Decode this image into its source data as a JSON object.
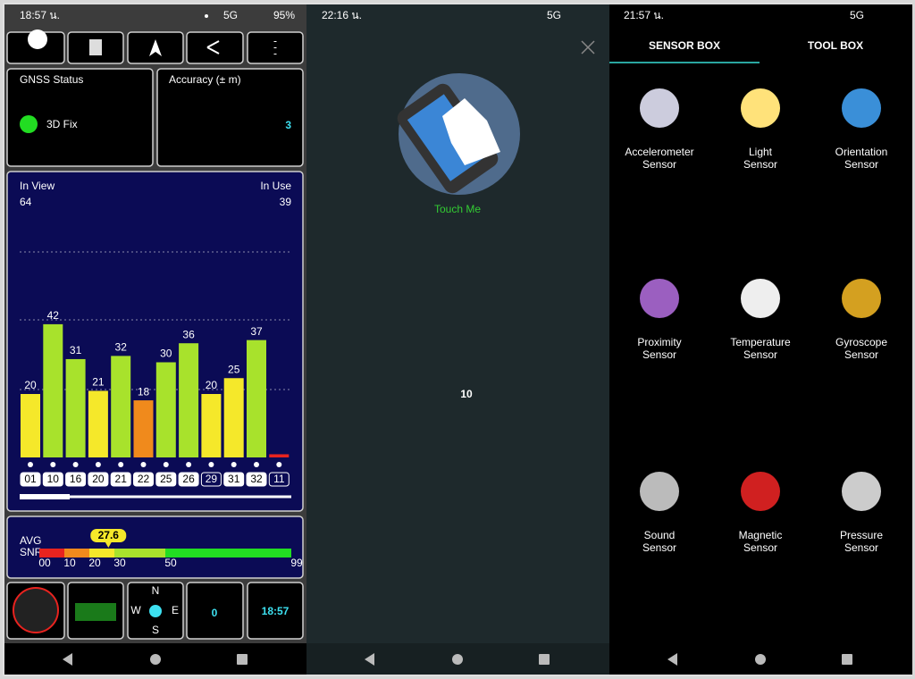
{
  "gnss": {
    "status_bar": {
      "time": "18:57 น.",
      "network": "5G",
      "battery": "95%"
    },
    "gnss_status": {
      "label": "GNSS Status",
      "value": "3D Fix"
    },
    "accuracy": {
      "label": "Accuracy (± m)",
      "value": 3
    },
    "sky": {
      "in_view_label": "In View",
      "in_view": 64,
      "in_use_label": "In Use",
      "in_use": 39,
      "satellites": {
        "ids": [
          "01",
          "10",
          "16",
          "20",
          "21",
          "22",
          "25",
          "26",
          "29",
          "31",
          "32",
          "11"
        ],
        "snr": [
          20,
          42,
          31,
          21,
          32,
          18,
          30,
          36,
          20,
          25,
          37,
          1
        ],
        "value_labels": [
          "20",
          "42",
          "31",
          "21",
          "32",
          "18",
          "30",
          "36",
          "20",
          "25",
          "37",
          null
        ],
        "in_use": [
          true,
          true,
          true,
          true,
          true,
          true,
          true,
          true,
          false,
          true,
          true,
          false
        ]
      }
    },
    "snr_scale": {
      "label_top": "AVG",
      "label_bottom": "SNR",
      "average": 27.6,
      "ticks": [
        {
          "value": 0,
          "label": "00"
        },
        10,
        20,
        30,
        50,
        99
      ],
      "colors": [
        "#e8231f",
        "#f08a1c",
        "#f5e82a",
        "#a8e22c",
        "#22dd22"
      ]
    },
    "bottom": {
      "compass": [
        "N",
        "W",
        "E",
        "S"
      ],
      "count": 0,
      "clock": "18:57"
    }
  },
  "touch": {
    "status_bar": {
      "time": "22:16 น.",
      "network": "5G"
    },
    "prompt": "Touch Me",
    "count": 10
  },
  "sensors": {
    "status_bar": {
      "time": "21:57 น.",
      "network": "5G"
    },
    "tabs": [
      "SENSOR BOX",
      "TOOL BOX"
    ],
    "items": [
      {
        "lines": [
          "Accelerometer",
          "Sensor"
        ]
      },
      {
        "lines": [
          "Light",
          "Sensor"
        ]
      },
      {
        "lines": [
          "Orientation",
          "Sensor"
        ]
      },
      {
        "lines": [
          "Proximity",
          "Sensor"
        ]
      },
      {
        "lines": [
          "Temperature",
          "Sensor"
        ]
      },
      {
        "lines": [
          "Gyroscope",
          "Sensor"
        ]
      },
      {
        "lines": [
          "Sound",
          "Sensor"
        ]
      },
      {
        "lines": [
          "Magnetic",
          "Sensor"
        ]
      },
      {
        "lines": [
          "Pressure",
          "Sensor"
        ]
      }
    ]
  }
}
